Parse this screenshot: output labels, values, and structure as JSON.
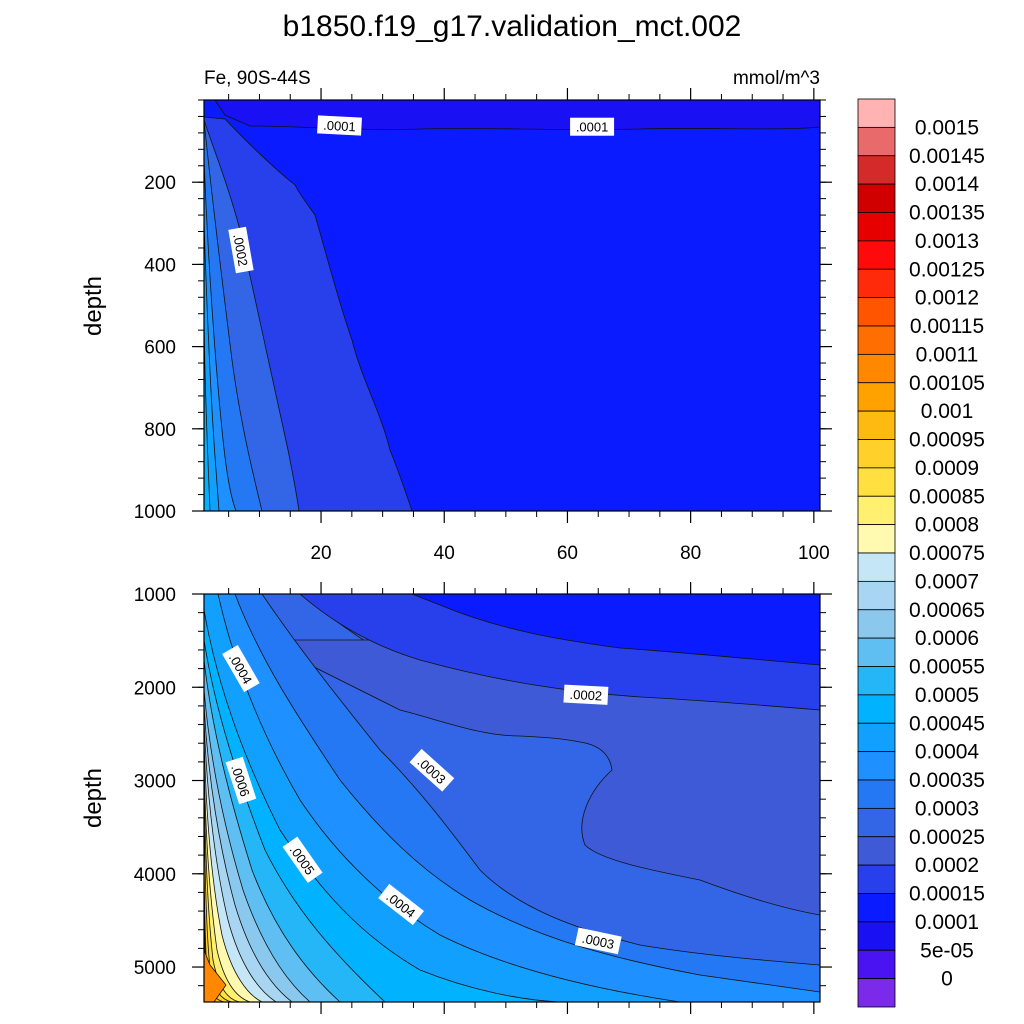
{
  "chart_data": {
    "type": "contour",
    "title": "b1850.f19_g17.validation_mct.002",
    "left_label": "Fe, 90S-44S",
    "right_label": "mmol/m^3",
    "ylabel": "depth",
    "xlim": [
      1,
      101
    ],
    "x_ticks": [
      "20",
      "40",
      "60",
      "80",
      "100"
    ],
    "panels": [
      {
        "name": "upper",
        "ylim": [
          0,
          1000
        ],
        "y_ticks": [
          "200",
          "400",
          "600",
          "800",
          "1000"
        ],
        "contour_labels": [
          ".0001",
          ".0001",
          ".0002"
        ]
      },
      {
        "name": "lower",
        "ylim": [
          1000,
          5375
        ],
        "y_ticks": [
          "1000",
          "2000",
          "3000",
          "4000",
          "5000"
        ],
        "contour_labels": [
          ".0004",
          ".0006",
          ".0005",
          ".0004",
          ".0003",
          ".0003",
          ".0002"
        ]
      }
    ],
    "colorbar": {
      "levels": [
        "0.0015",
        "0.00145",
        "0.0014",
        "0.00135",
        "0.0013",
        "0.00125",
        "0.0012",
        "0.00115",
        "0.0011",
        "0.00105",
        "0.001",
        "0.00095",
        "0.0009",
        "0.00085",
        "0.0008",
        "0.00075",
        "0.0007",
        "0.00065",
        "0.0006",
        "0.00055",
        "0.0005",
        "0.00045",
        "0.0004",
        "0.00035",
        "0.0003",
        "0.00025",
        "0.0002",
        "0.00015",
        "0.0001",
        "5e-05",
        "0"
      ],
      "colors": [
        "#ffb3b3",
        "#e86a6a",
        "#d42a2a",
        "#d00000",
        "#e60000",
        "#ff0a0a",
        "#ff2a0a",
        "#ff5500",
        "#ff6e00",
        "#ff8800",
        "#ffa200",
        "#ffba12",
        "#ffcf2a",
        "#ffe040",
        "#fff070",
        "#fffab0",
        "#c4e6f6",
        "#a8d6f2",
        "#8ac8ee",
        "#5fbef2",
        "#24b6f6",
        "#00b2ff",
        "#12a0ff",
        "#1e90ff",
        "#2478f4",
        "#3366e6",
        "#3f5ad6",
        "#2840ec",
        "#0a1cff",
        "#1a10f4",
        "#4a14f2",
        "#7a2ae8"
      ]
    }
  }
}
